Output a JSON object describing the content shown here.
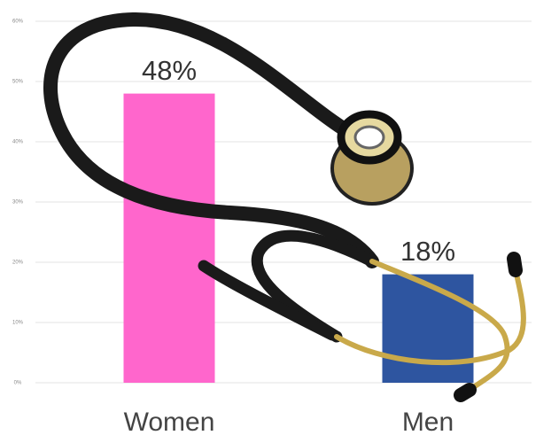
{
  "chart_data": {
    "type": "bar",
    "categories": [
      "Women",
      "Men"
    ],
    "values": [
      48,
      18
    ],
    "value_labels": [
      "48%",
      "18%"
    ],
    "colors": [
      "#ff66cc",
      "#2e55a0"
    ],
    "ylim": [
      0,
      60
    ],
    "yticks": [
      {
        "value": 0,
        "label": "0%"
      },
      {
        "value": 10,
        "label": "10%"
      },
      {
        "value": 20,
        "label": "20%"
      },
      {
        "value": 30,
        "label": "30%"
      },
      {
        "value": 40,
        "label": "40%"
      },
      {
        "value": 50,
        "label": "50%"
      },
      {
        "value": 60,
        "label": "60%"
      }
    ],
    "grid": true
  }
}
